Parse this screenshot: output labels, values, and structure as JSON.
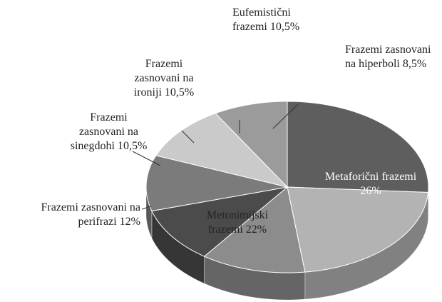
{
  "chart_data": {
    "type": "pie",
    "categories": [
      "Metaforični frazemi",
      "Metonimijski frazemi",
      "Frazemi zasnovani na perifrazi",
      "Frazemi zasnovani na sinegdohi",
      "Frazemi zasnovani na ironiji",
      "Eufemistični frazemi",
      "Frazemi zasnovani na hiperboli"
    ],
    "values": [
      26,
      22,
      12,
      10.5,
      10.5,
      10.5,
      8.5
    ],
    "value_labels": [
      "26%",
      "22%",
      "12%",
      "10,5%",
      "10,5%",
      "10,5%",
      "8,5%"
    ],
    "colors": [
      "#5e5e5e",
      "#b3b3b3",
      "#8c8c8c",
      "#4b4b4b",
      "#7b7b7b",
      "#cacaca",
      "#9b9b9b"
    ]
  }
}
